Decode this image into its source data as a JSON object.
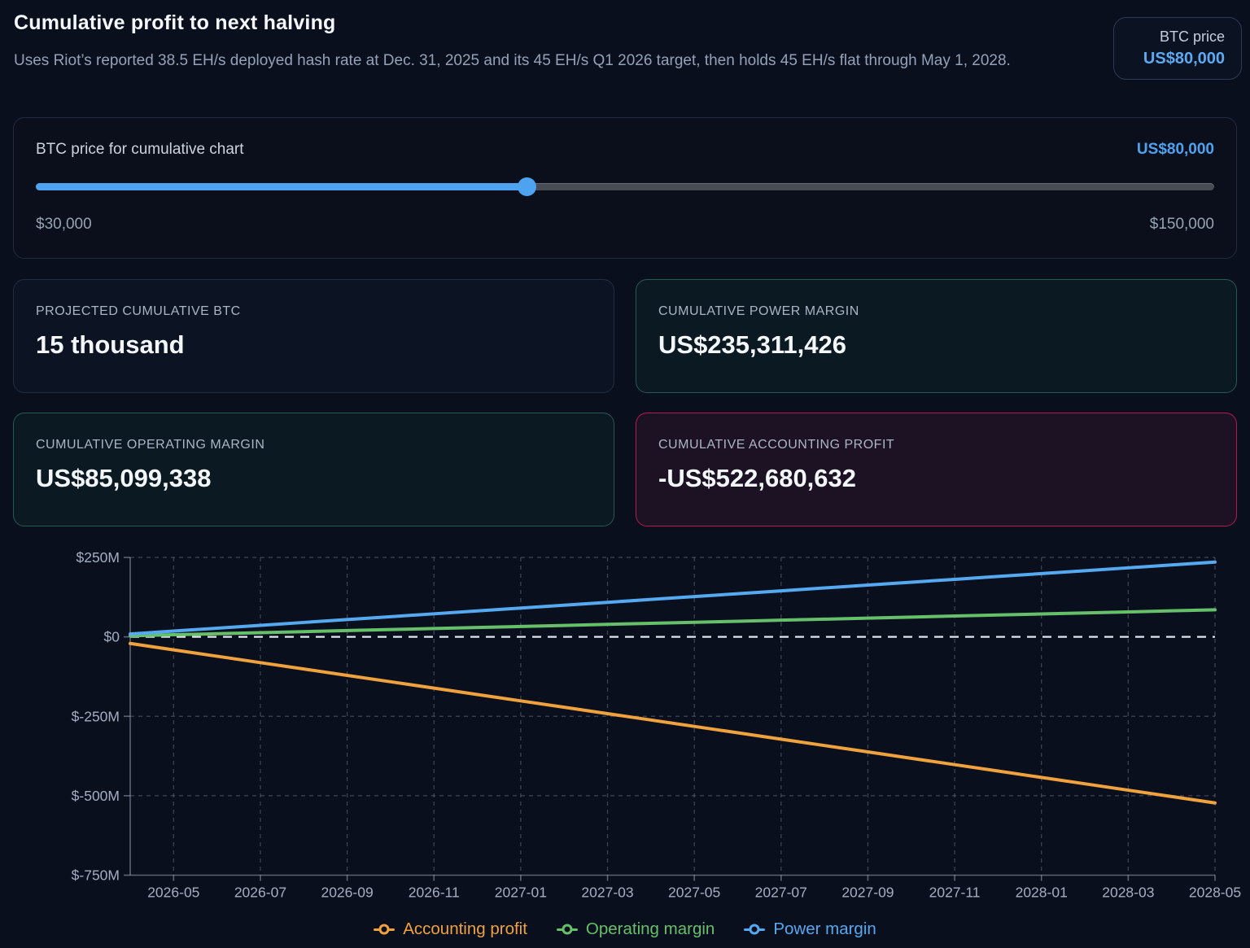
{
  "header": {
    "title": "Cumulative profit to next halving",
    "subtitle": "Uses Riot’s reported 38.5 EH/s deployed hash rate at Dec. 31, 2025 and its 45 EH/s Q1 2026 target, then holds 45 EH/s flat through May 1, 2028.",
    "btc_price_badge": {
      "label": "BTC price",
      "value": "US$80,000"
    }
  },
  "slider": {
    "label": "BTC price for cumulative chart",
    "value_label": "US$80,000",
    "min": 30000,
    "max": 150000,
    "current": 80000,
    "min_label": "$30,000",
    "max_label": "$150,000",
    "accent_color": "#4da3f0"
  },
  "stats": [
    {
      "label": "PROJECTED CUMULATIVE BTC",
      "value": "15 thousand",
      "style": "neutral"
    },
    {
      "label": "CUMULATIVE POWER MARGIN",
      "value": "US$235,311,426",
      "style": "teal"
    },
    {
      "label": "CUMULATIVE OPERATING MARGIN",
      "value": "US$85,099,338",
      "style": "teal"
    },
    {
      "label": "CUMULATIVE ACCOUNTING PROFIT",
      "value": "-US$522,680,632",
      "style": "crimson"
    }
  ],
  "chart_data": {
    "type": "line",
    "title": "",
    "xlabel": "",
    "ylabel": "",
    "units": "USD millions",
    "grid": "dashed",
    "legend_position": "bottom",
    "ylim": [
      -750,
      250
    ],
    "yticks": [
      {
        "value": 250,
        "label": "$250M"
      },
      {
        "value": 0,
        "label": "$0"
      },
      {
        "value": -250,
        "label": "$-250M"
      },
      {
        "value": -500,
        "label": "$-500M"
      },
      {
        "value": -750,
        "label": "$-750M"
      }
    ],
    "x": [
      "2026-04",
      "2026-05",
      "2026-06",
      "2026-07",
      "2026-08",
      "2026-09",
      "2026-10",
      "2026-11",
      "2026-12",
      "2027-01",
      "2027-02",
      "2027-03",
      "2027-04",
      "2027-05",
      "2027-06",
      "2027-07",
      "2027-08",
      "2027-09",
      "2027-10",
      "2027-11",
      "2027-12",
      "2028-01",
      "2028-02",
      "2028-03",
      "2028-04",
      "2028-05"
    ],
    "xtick_labels": [
      "2026-05",
      "2026-07",
      "2026-09",
      "2026-11",
      "2027-01",
      "2027-03",
      "2027-05",
      "2027-07",
      "2027-09",
      "2027-11",
      "2028-01",
      "2028-03",
      "2028-05"
    ],
    "zero_line": true,
    "series": [
      {
        "name": "Accounting profit",
        "color": "#efa23d",
        "end_value_label": "-US$522,680,632",
        "values": [
          -20.9,
          -41.0,
          -61.0,
          -81.1,
          -101.2,
          -121.3,
          -141.3,
          -161.4,
          -181.5,
          -201.5,
          -221.6,
          -241.7,
          -261.7,
          -281.8,
          -301.9,
          -322.0,
          -342.0,
          -362.1,
          -382.2,
          -402.2,
          -422.3,
          -442.4,
          -462.4,
          -482.5,
          -502.6,
          -522.7
        ]
      },
      {
        "name": "Operating margin",
        "color": "#66c06a",
        "end_value_label": "US$85,099,338",
        "values": [
          3.3,
          6.6,
          9.8,
          13.1,
          16.4,
          19.7,
          22.9,
          26.2,
          29.5,
          32.7,
          36.0,
          39.3,
          42.6,
          45.8,
          49.1,
          52.4,
          55.6,
          58.9,
          62.2,
          65.5,
          68.7,
          72.0,
          75.3,
          78.5,
          81.8,
          85.1
        ]
      },
      {
        "name": "Power margin",
        "color": "#55a9f0",
        "end_value_label": "US$235,311,426",
        "values": [
          9.1,
          18.1,
          27.2,
          36.2,
          45.3,
          54.3,
          63.4,
          72.5,
          81.5,
          90.5,
          99.6,
          108.6,
          117.7,
          126.7,
          135.8,
          144.8,
          153.9,
          162.9,
          172.0,
          181.0,
          190.1,
          199.1,
          208.2,
          217.2,
          226.3,
          235.3
        ]
      }
    ]
  }
}
